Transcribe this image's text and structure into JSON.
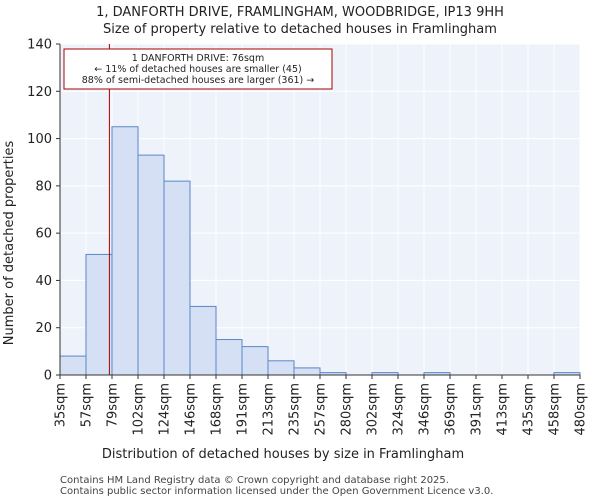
{
  "chart_data": {
    "type": "bar",
    "title_line1": "1, DANFORTH DRIVE, FRAMLINGHAM, WOODBRIDGE, IP13 9HH",
    "title_line2": "Size of property relative to detached houses in Framlingham",
    "xlabel": "Distribution of detached houses by size in Framlingham",
    "ylabel": "Number of detached properties",
    "ylim": [
      0,
      140
    ],
    "yticks": [
      0,
      20,
      40,
      60,
      80,
      100,
      120,
      140
    ],
    "bin_edges": [
      "35sqm",
      "57sqm",
      "79sqm",
      "102sqm",
      "124sqm",
      "146sqm",
      "168sqm",
      "191sqm",
      "213sqm",
      "235sqm",
      "257sqm",
      "280sqm",
      "302sqm",
      "324sqm",
      "346sqm",
      "369sqm",
      "391sqm",
      "413sqm",
      "435sqm",
      "458sqm",
      "480sqm"
    ],
    "values": [
      8,
      51,
      105,
      93,
      82,
      29,
      15,
      12,
      6,
      3,
      1,
      0,
      1,
      0,
      1,
      0,
      0,
      0,
      0,
      1
    ],
    "marker_bin_position": 1.9,
    "annotation": {
      "line1": "1 DANFORTH DRIVE: 76sqm",
      "line2": "← 11% of detached houses are smaller (45)",
      "line3": "88% of semi-detached houses are larger (361) →"
    },
    "grid": true,
    "colors": {
      "bar_fill": "#d6e0f5",
      "bar_stroke": "#5b86c8",
      "marker": "#aa0000",
      "plot_bg": "#eef2fb",
      "grid": "#ffffff"
    }
  },
  "footer": {
    "line1": "Contains HM Land Registry data © Crown copyright and database right 2025.",
    "line2": "Contains public sector information licensed under the Open Government Licence v3.0."
  }
}
